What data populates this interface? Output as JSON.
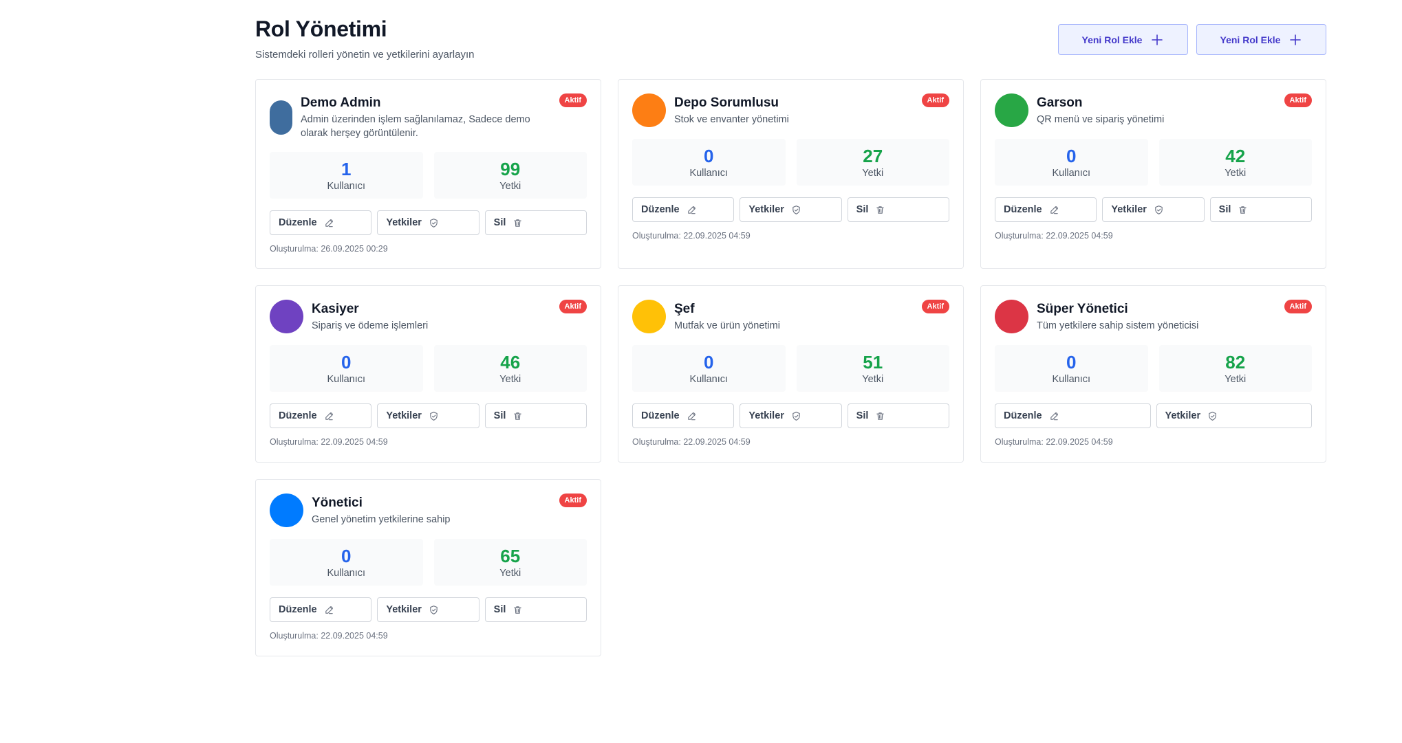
{
  "header": {
    "title": "Rol Yönetimi",
    "subtitle": "Sistemdeki rolleri yönetin ve yetkilerini ayarlayın",
    "add_buttons": [
      "Yeni Rol Ekle",
      "Yeni Rol Ekle"
    ]
  },
  "labels": {
    "users": "Kullanıcı",
    "permissions": "Yetkiler",
    "permissions_stat": "Yetki",
    "edit": "Düzenle",
    "delete": "Sil"
  },
  "roles": [
    {
      "name": "Demo Admin",
      "description": "Admin üzerinden işlem sağlanılamaz, Sadece demo olarak herşey görüntülenir.",
      "status": "Aktif",
      "users": "1",
      "permissions": "99",
      "created": "Oluşturulma: 26.09.2025 00:29",
      "color": "#3f6d9e",
      "deletable": true
    },
    {
      "name": "Depo Sorumlusu",
      "description": "Stok ve envanter yönetimi",
      "status": "Aktif",
      "users": "0",
      "permissions": "27",
      "created": "Oluşturulma: 22.09.2025 04:59",
      "color": "#fd7e14",
      "deletable": true
    },
    {
      "name": "Garson",
      "description": "QR menü ve sipariş yönetimi",
      "status": "Aktif",
      "users": "0",
      "permissions": "42",
      "created": "Oluşturulma: 22.09.2025 04:59",
      "color": "#28a745",
      "deletable": true
    },
    {
      "name": "Kasiyer",
      "description": "Sipariş ve ödeme işlemleri",
      "status": "Aktif",
      "users": "0",
      "permissions": "46",
      "created": "Oluşturulma: 22.09.2025 04:59",
      "color": "#6f42c1",
      "deletable": true
    },
    {
      "name": "Şef",
      "description": "Mutfak ve ürün yönetimi",
      "status": "Aktif",
      "users": "0",
      "permissions": "51",
      "created": "Oluşturulma: 22.09.2025 04:59",
      "color": "#ffc107",
      "deletable": true
    },
    {
      "name": "Süper Yönetici",
      "description": "Tüm yetkilere sahip sistem yöneticisi",
      "status": "Aktif",
      "users": "0",
      "permissions": "82",
      "created": "Oluşturulma: 22.09.2025 04:59",
      "color": "#dc3545",
      "deletable": false
    },
    {
      "name": "Yönetici",
      "description": "Genel yönetim yetkilerine sahip",
      "status": "Aktif",
      "users": "0",
      "permissions": "65",
      "created": "Oluşturulma: 22.09.2025 04:59",
      "color": "#007bff",
      "deletable": true
    }
  ]
}
